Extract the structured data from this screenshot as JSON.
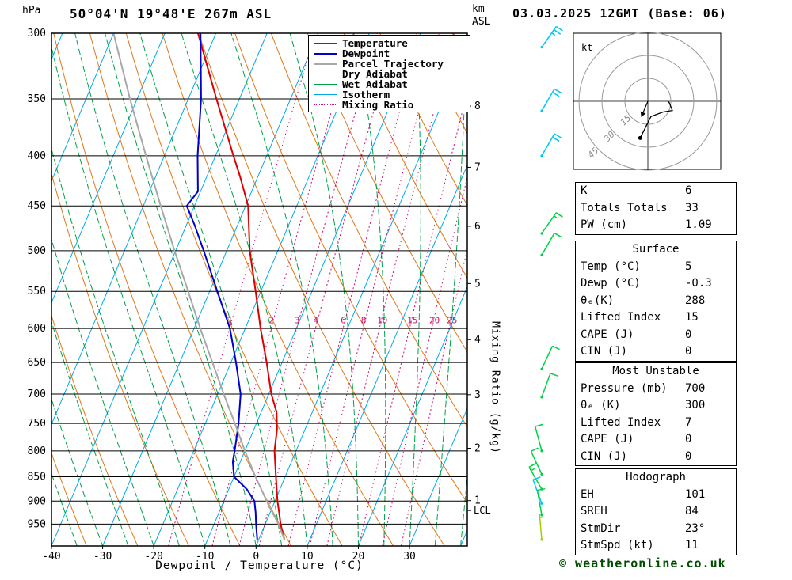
{
  "header": {
    "pressure_unit": "hPa",
    "title": "50°04'N 19°48'E 267m ASL",
    "km_label": "km",
    "asl_label": "ASL",
    "datetime": "03.03.2025 12GMT (Base: 06)"
  },
  "footer": {
    "credit": "© weatheronline.co.uk"
  },
  "legend": {
    "items": [
      {
        "label": "Temperature",
        "color": "#dd0000",
        "width": 2,
        "dash": "solid"
      },
      {
        "label": "Dewpoint",
        "color": "#0000cc",
        "width": 2,
        "dash": "solid"
      },
      {
        "label": "Parcel Trajectory",
        "color": "#a8a8a8",
        "width": 2,
        "dash": "solid"
      },
      {
        "label": "Dry Adiabat",
        "color": "#e07818",
        "width": 1,
        "dash": "solid"
      },
      {
        "label": "Wet Adiabat",
        "color": "#00a048",
        "width": 1,
        "dash": "solid"
      },
      {
        "label": "Isotherm",
        "color": "#00a8e8",
        "width": 1,
        "dash": "solid"
      },
      {
        "label": "Mixing Ratio",
        "color": "#cc1177",
        "width": 1,
        "dash": "dotted"
      }
    ]
  },
  "chart_data": [
    {
      "type": "line",
      "variant": "skew-t-log-p",
      "title": "50°04'N 19°48'E 267m ASL",
      "xlabel": "Dewpoint / Temperature (°C)",
      "ylabel_left": "hPa",
      "ylabel_right_inner": "Mixing Ratio (g/kg)",
      "ylabel_right_outer": "km ASL",
      "x_axis": {
        "min": -40,
        "max": 41.3,
        "ticks": [
          -40,
          -30,
          -20,
          -10,
          0,
          10,
          20,
          30
        ]
      },
      "pressure_ticks": [
        300,
        350,
        400,
        450,
        500,
        550,
        600,
        650,
        700,
        750,
        800,
        850,
        900,
        950
      ],
      "km_ticks": [
        {
          "km": 8,
          "p": 356
        },
        {
          "km": 7,
          "p": 411
        },
        {
          "km": 6,
          "p": 472
        },
        {
          "km": 5,
          "p": 540
        },
        {
          "km": 4,
          "p": 616
        },
        {
          "km": 3,
          "p": 701
        },
        {
          "km": 2,
          "p": 795
        },
        {
          "km": 1,
          "p": 899
        }
      ],
      "lcl_pressure": 920,
      "lcl_label": "LCL",
      "colors": {
        "isotherm": "#00a8e8",
        "dry_adiabat": "#e07818",
        "wet_adiabat": "#00a048",
        "mixing_ratio": "#cc1177",
        "grid": "#000000"
      },
      "background": {
        "isotherms": {
          "min": -110,
          "max": 40,
          "step": 10
        },
        "dry_adiabats": {
          "min_K": 230,
          "max_K": 390,
          "step_K": 10
        },
        "wet_adiabats": {
          "min_C": -40,
          "max_C": 40,
          "step_C": 5
        },
        "mixing_ratio": {
          "values": [
            1,
            2,
            3,
            4,
            6,
            8,
            10,
            15,
            20,
            25
          ],
          "label_pressure": 595
        }
      },
      "series": [
        {
          "name": "Temperature",
          "color": "#dd0000",
          "width": 2,
          "points": [
            [
              985,
              5
            ],
            [
              950,
              3
            ],
            [
              925,
              1.8
            ],
            [
              900,
              0.5
            ],
            [
              850,
              -1.8
            ],
            [
              800,
              -4.2
            ],
            [
              760,
              -5.5
            ],
            [
              730,
              -7
            ],
            [
              700,
              -9.5
            ],
            [
              650,
              -13
            ],
            [
              600,
              -17
            ],
            [
              550,
              -21
            ],
            [
              500,
              -25.5
            ],
            [
              450,
              -29.5
            ],
            [
              420,
              -33.5
            ],
            [
              400,
              -36.5
            ],
            [
              350,
              -44.5
            ],
            [
              300,
              -53.5
            ]
          ]
        },
        {
          "name": "Dewpoint",
          "color": "#0000cc",
          "width": 2,
          "points": [
            [
              985,
              -0.3
            ],
            [
              950,
              -1.8
            ],
            [
              925,
              -2.8
            ],
            [
              900,
              -4
            ],
            [
              875,
              -6.5
            ],
            [
              850,
              -10
            ],
            [
              820,
              -11.5
            ],
            [
              800,
              -12
            ],
            [
              750,
              -13.5
            ],
            [
              700,
              -15.5
            ],
            [
              650,
              -19
            ],
            [
              600,
              -23
            ],
            [
              550,
              -28.5
            ],
            [
              500,
              -34.5
            ],
            [
              470,
              -38.5
            ],
            [
              450,
              -41.5
            ],
            [
              435,
              -40.5
            ],
            [
              400,
              -43.5
            ],
            [
              350,
              -47.5
            ],
            [
              300,
              -53
            ]
          ]
        },
        {
          "name": "Parcel Trajectory",
          "color": "#a8a8a8",
          "width": 2,
          "points": [
            [
              985,
              5
            ],
            [
              950,
              2.6
            ],
            [
              910,
              -0.8
            ],
            [
              850,
              -5.8
            ],
            [
              800,
              -10
            ],
            [
              750,
              -14.2
            ],
            [
              700,
              -18.8
            ],
            [
              650,
              -23.6
            ],
            [
              600,
              -28.8
            ],
            [
              550,
              -34.2
            ],
            [
              500,
              -40.2
            ],
            [
              450,
              -46.6
            ],
            [
              400,
              -53.6
            ],
            [
              350,
              -61.4
            ],
            [
              300,
              -70
            ]
          ]
        }
      ],
      "wind_barbs": [
        {
          "p": 310,
          "spd": 25,
          "dir": 35,
          "color": "#00c8f0"
        },
        {
          "p": 360,
          "spd": 20,
          "dir": 30,
          "color": "#00c8f0"
        },
        {
          "p": 400,
          "spd": 20,
          "dir": 30,
          "color": "#00c8f0"
        },
        {
          "p": 480,
          "spd": 15,
          "dir": 35,
          "color": "#00d044"
        },
        {
          "p": 505,
          "spd": 10,
          "dir": 30,
          "color": "#00d044"
        },
        {
          "p": 660,
          "spd": 10,
          "dir": 25,
          "color": "#00d044"
        },
        {
          "p": 705,
          "spd": 10,
          "dir": 20,
          "color": "#00d044"
        },
        {
          "p": 800,
          "spd": 10,
          "dir": 345,
          "color": "#00d044"
        },
        {
          "p": 845,
          "spd": 10,
          "dir": 335,
          "color": "#00d044"
        },
        {
          "p": 875,
          "spd": 15,
          "dir": 330,
          "color": "#00d044"
        },
        {
          "p": 905,
          "spd": 10,
          "dir": 340,
          "color": "#00c8f0"
        },
        {
          "p": 930,
          "spd": 10,
          "dir": 350,
          "color": "#00d044"
        },
        {
          "p": 985,
          "spd": 5,
          "dir": 355,
          "color": "#a0d000"
        }
      ]
    },
    {
      "type": "line",
      "variant": "hodograph",
      "unit": "kt",
      "rings": [
        15,
        30,
        45
      ],
      "trace": [
        [
          -5,
          -24
        ],
        [
          2,
          -10
        ],
        [
          10,
          -7
        ],
        [
          16,
          -6
        ],
        [
          14,
          -1
        ],
        [
          13,
          0
        ]
      ],
      "storm": {
        "dir": 23,
        "spd": 11
      }
    }
  ],
  "panels": {
    "indices": {
      "rows": [
        {
          "label": "K",
          "value": "6"
        },
        {
          "label": "Totals Totals",
          "value": "33"
        },
        {
          "label": "PW (cm)",
          "value": "1.09"
        }
      ]
    },
    "surface": {
      "title": "Surface",
      "rows": [
        {
          "label": "Temp (°C)",
          "value": "5"
        },
        {
          "label": "Dewp (°C)",
          "value": "-0.3"
        },
        {
          "label": "θₑ(K)",
          "value": "288"
        },
        {
          "label": "Lifted Index",
          "value": "15"
        },
        {
          "label": "CAPE (J)",
          "value": "0"
        },
        {
          "label": "CIN (J)",
          "value": "0"
        }
      ]
    },
    "most_unstable": {
      "title": "Most Unstable",
      "rows": [
        {
          "label": "Pressure (mb)",
          "value": "700"
        },
        {
          "label": "θₑ (K)",
          "value": "300"
        },
        {
          "label": "Lifted Index",
          "value": "7"
        },
        {
          "label": "CAPE (J)",
          "value": "0"
        },
        {
          "label": "CIN (J)",
          "value": "0"
        }
      ]
    },
    "hodograph_panel": {
      "title": "Hodograph",
      "rows": [
        {
          "label": "EH",
          "value": "101"
        },
        {
          "label": "SREH",
          "value": "84"
        },
        {
          "label": "StmDir",
          "value": "23°"
        },
        {
          "label": "StmSpd (kt)",
          "value": "11"
        }
      ]
    }
  }
}
